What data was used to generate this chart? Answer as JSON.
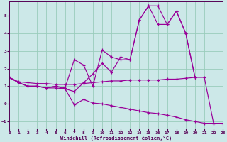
{
  "background_color": "#cce8e8",
  "grid_color": "#99ccbb",
  "line_color": "#990099",
  "xlabel": "Windchill (Refroidissement éolien,°C)",
  "xlim": [
    0,
    23
  ],
  "ylim": [
    -1.4,
    5.8
  ],
  "xticks": [
    0,
    1,
    2,
    3,
    4,
    5,
    6,
    7,
    8,
    9,
    10,
    11,
    12,
    13,
    14,
    15,
    16,
    17,
    18,
    19,
    20,
    21,
    22,
    23
  ],
  "yticks": [
    -1,
    0,
    1,
    2,
    3,
    4,
    5
  ],
  "lines": [
    {
      "x": [
        0,
        1,
        2,
        3,
        4,
        5,
        6,
        7,
        8,
        9,
        10,
        11,
        12,
        13,
        14,
        15,
        16,
        17,
        18,
        19,
        20
      ],
      "y": [
        1.5,
        1.2,
        1.0,
        1.0,
        0.9,
        1.0,
        0.85,
        0.7,
        1.2,
        1.7,
        2.3,
        1.8,
        2.65,
        2.5,
        4.75,
        5.55,
        5.55,
        4.5,
        5.25,
        4.0,
        1.5
      ]
    },
    {
      "x": [
        0,
        1,
        2,
        3,
        4,
        5,
        6,
        7,
        8,
        9,
        10,
        11,
        12,
        13,
        14,
        15,
        16,
        17,
        18,
        19,
        20
      ],
      "y": [
        1.5,
        1.2,
        1.0,
        1.0,
        0.9,
        1.0,
        0.9,
        2.5,
        2.2,
        1.0,
        3.05,
        2.65,
        2.5,
        2.5,
        4.75,
        5.55,
        4.5,
        4.5,
        5.25,
        4.0,
        1.5
      ]
    },
    {
      "x": [
        0,
        1,
        2,
        3,
        4,
        5,
        6,
        7,
        8,
        9,
        10,
        11,
        12,
        13,
        14,
        15,
        16,
        17,
        18,
        19,
        20,
        21,
        22
      ],
      "y": [
        1.5,
        1.2,
        1.0,
        1.0,
        0.9,
        0.9,
        0.85,
        -0.05,
        0.25,
        0.05,
        0.0,
        -0.1,
        -0.2,
        -0.3,
        -0.4,
        -0.5,
        -0.55,
        -0.65,
        -0.75,
        -0.9,
        -1.0,
        -1.1,
        -1.1
      ]
    },
    {
      "x": [
        0,
        1,
        2,
        3,
        4,
        5,
        6,
        7,
        8,
        9,
        10,
        11,
        12,
        13,
        14,
        15,
        16,
        17,
        18,
        19,
        20,
        21,
        22,
        23
      ],
      "y": [
        1.5,
        1.25,
        1.2,
        1.15,
        1.15,
        1.1,
        1.1,
        1.1,
        1.15,
        1.2,
        1.25,
        1.3,
        1.3,
        1.35,
        1.35,
        1.35,
        1.35,
        1.4,
        1.4,
        1.45,
        1.5,
        1.5,
        -1.1,
        -1.1
      ]
    }
  ]
}
